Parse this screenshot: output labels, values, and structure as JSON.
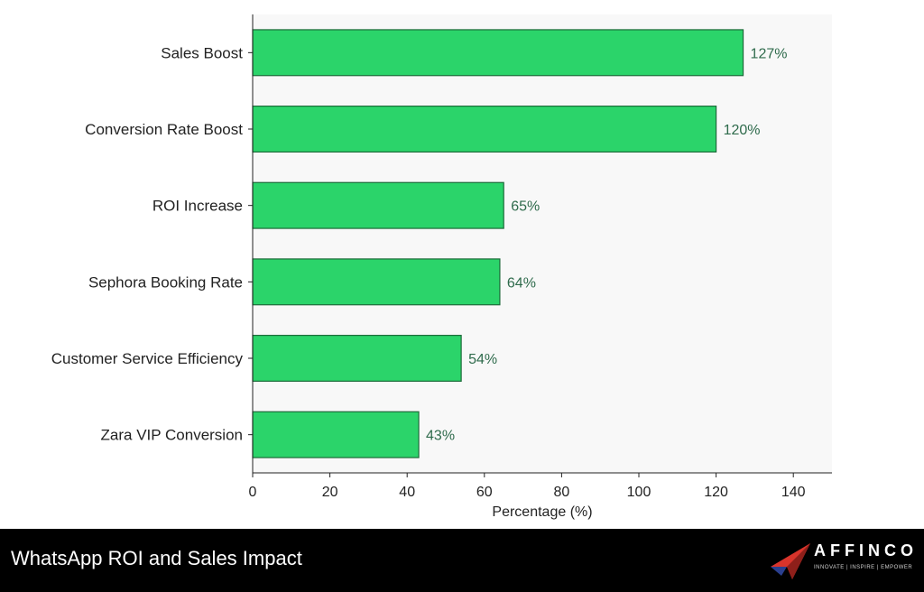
{
  "chart_data": {
    "type": "bar",
    "orientation": "horizontal",
    "categories": [
      "Sales Boost",
      "Conversion Rate Boost",
      "ROI Increase",
      "Sephora Booking Rate",
      "Customer Service Efficiency",
      "Zara VIP Conversion"
    ],
    "values": [
      127,
      120,
      65,
      64,
      54,
      43
    ],
    "value_labels": [
      "127%",
      "120%",
      "65%",
      "64%",
      "54%",
      "43%"
    ],
    "xlabel": "Percentage (%)",
    "ylabel": "",
    "xlim": [
      0,
      150
    ],
    "xticks": [
      0,
      20,
      40,
      60,
      80,
      100,
      120,
      140
    ],
    "grid": false,
    "bar_color": "#2bd46a",
    "bar_edge_color": "#1d6b3a",
    "value_label_color": "#2f6b4c",
    "plot_background": "#f8f8f8"
  },
  "footer": {
    "title": "WhatsApp ROI and Sales Impact",
    "logo_text": "AFFINCO",
    "logo_tagline": "INNOVATE | INSPIRE | EMPOWER",
    "logo_icon": "paper-plane-icon",
    "background": "#000000"
  }
}
